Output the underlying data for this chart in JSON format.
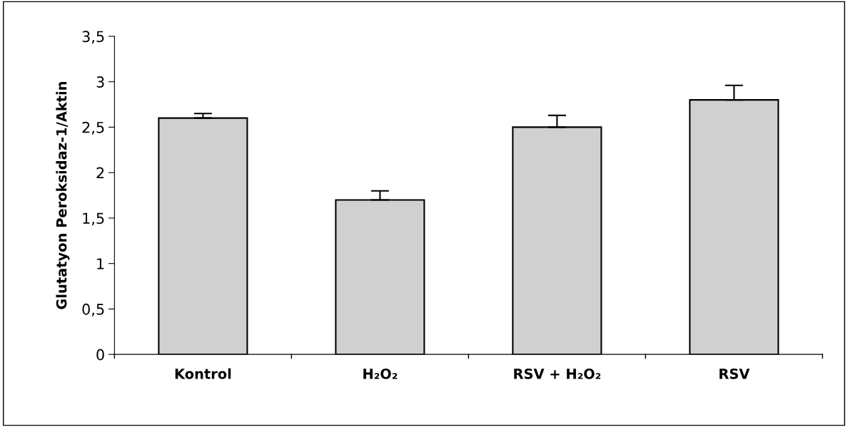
{
  "chart_data": {
    "type": "bar",
    "ylabel": "Glutatyon Peroksidaz-1/Aktin",
    "categories": [
      "Kontrol",
      "H₂O₂",
      "RSV + H₂O₂",
      "RSV"
    ],
    "values": [
      2.6,
      1.7,
      2.5,
      2.8
    ],
    "errors": [
      [
        2.6,
        2.65
      ],
      [
        1.7,
        1.8
      ],
      [
        2.5,
        2.63
      ],
      [
        2.8,
        2.96
      ]
    ],
    "color": "#d0d0d0",
    "ylim": [
      0,
      3.5
    ],
    "yticks": [
      0,
      {
        "value": 0.5,
        "label": "0,5"
      },
      1,
      {
        "value": 1.5,
        "label": "1,5"
      },
      2,
      {
        "value": 2.5,
        "label": "2,5"
      },
      3,
      {
        "value": 3.5,
        "label": "3,5"
      }
    ],
    "grid": false,
    "legend": false
  }
}
